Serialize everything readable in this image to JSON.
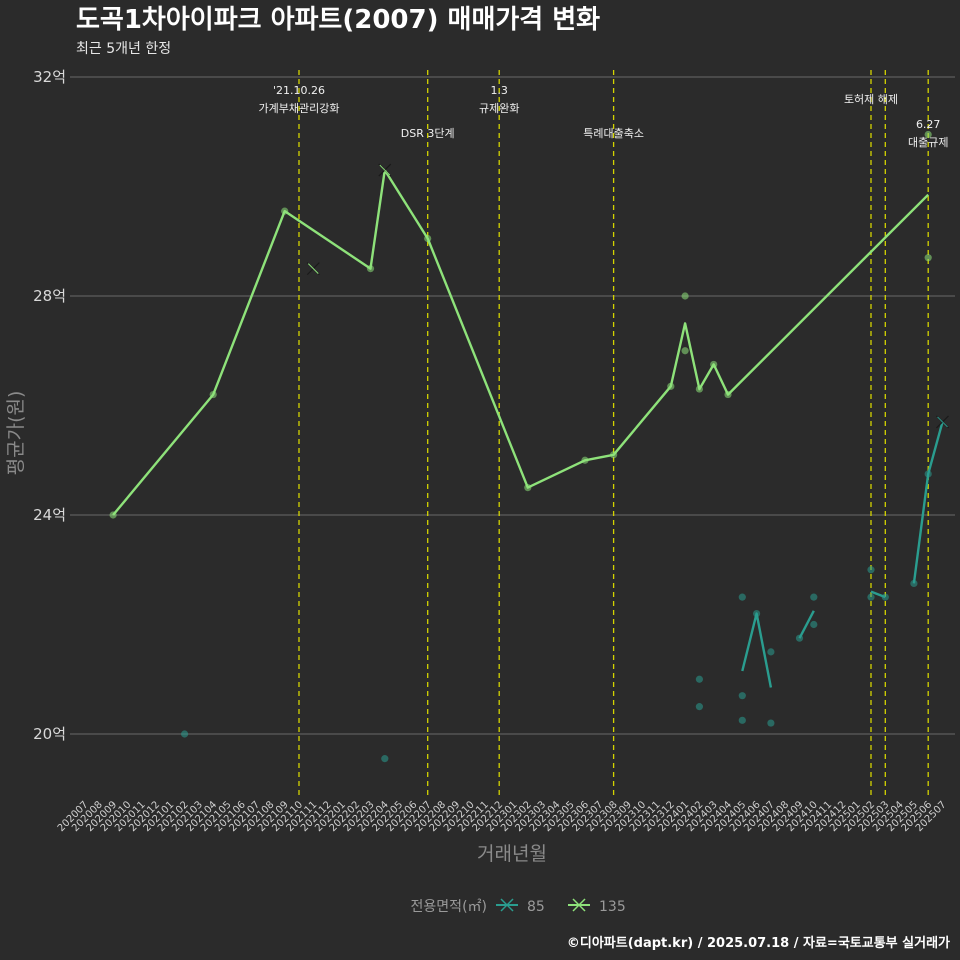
{
  "chart_data": {
    "type": "line",
    "title": "도곡1차아이파크 아파트(2007) 매매가격 변화",
    "subtitle": "최근 5개년 한정",
    "xlabel": "거래년월",
    "ylabel": "평균가(원)",
    "caption": "©디아파트(dapt.kr) / 2025.07.18 / 자료=국토교통부 실거래가",
    "legend_title": "전용면적(㎡)",
    "legend_position": "bottom",
    "grid": true,
    "ylim": [
      188000,
      320000
    ],
    "y_ticks": [
      {
        "value": 200000,
        "label": "20억"
      },
      {
        "value": 240000,
        "label": "24억"
      },
      {
        "value": 280000,
        "label": "28억"
      },
      {
        "value": 320000,
        "label": "32억"
      }
    ],
    "x_categories": [
      "202007",
      "202008",
      "202009",
      "202010",
      "202011",
      "202012",
      "202101",
      "202102",
      "202103",
      "202104",
      "202105",
      "202106",
      "202107",
      "202108",
      "202109",
      "202110",
      "202111",
      "202112",
      "202201",
      "202202",
      "202203",
      "202204",
      "202205",
      "202206",
      "202207",
      "202208",
      "202209",
      "202210",
      "202211",
      "202212",
      "202301",
      "202302",
      "202303",
      "202304",
      "202305",
      "202306",
      "202307",
      "202308",
      "202309",
      "202310",
      "202311",
      "202312",
      "202401",
      "202402",
      "202403",
      "202404",
      "202405",
      "202406",
      "202407",
      "202408",
      "202409",
      "202410",
      "202411",
      "202412",
      "202501",
      "202502",
      "202503",
      "202504",
      "202505",
      "202506",
      "202507"
    ],
    "annotations": [
      {
        "x": 15.0,
        "lines": [
          "'21.10.26",
          "가계부채관리강화"
        ],
        "row": 0
      },
      {
        "x": 24.0,
        "lines": [
          "DSR 3단계"
        ],
        "row": 2
      },
      {
        "x": 29.0,
        "lines": [
          "1.3",
          "규제완화"
        ],
        "row": 0
      },
      {
        "x": 37.0,
        "lines": [
          "특례대출축소"
        ],
        "row": 2
      },
      {
        "x": 55.0,
        "lines": [
          "토허제 해제"
        ],
        "row": 1
      },
      {
        "x": 56.0,
        "lines": [],
        "row": 1
      },
      {
        "x": 59.0,
        "lines": [
          "6.27",
          "대출규제"
        ],
        "row": 3
      }
    ],
    "series": [
      {
        "name": "85",
        "color": "#2a9d8f",
        "line": [
          {
            "x": 43.0,
            "y": 207500
          },
          {
            "x": 46.0,
            "y": 211500
          },
          {
            "x": 47.0,
            "y": 222000
          },
          {
            "x": 48.0,
            "y": 208500
          },
          {
            "x": 50.0,
            "y": 217500
          },
          {
            "x": 51.0,
            "y": 222500
          },
          {
            "x": 55.0,
            "y": 226000
          },
          {
            "x": 56.0,
            "y": 225000
          },
          {
            "x": 58.0,
            "y": 227500
          },
          {
            "x": 59.0,
            "y": 247500
          },
          {
            "x": 60.0,
            "y": 257000
          }
        ],
        "points": [
          {
            "x": 7.0,
            "y": 200000
          },
          {
            "x": 21.0,
            "y": 195500
          },
          {
            "x": 43.0,
            "y": 205000
          },
          {
            "x": 43.0,
            "y": 210000
          },
          {
            "x": 46.0,
            "y": 202500
          },
          {
            "x": 46.0,
            "y": 207000
          },
          {
            "x": 46.0,
            "y": 225000
          },
          {
            "x": 47.0,
            "y": 222000
          },
          {
            "x": 48.0,
            "y": 202000
          },
          {
            "x": 48.0,
            "y": 215000
          },
          {
            "x": 50.0,
            "y": 217500
          },
          {
            "x": 51.0,
            "y": 220000
          },
          {
            "x": 51.0,
            "y": 225000
          },
          {
            "x": 55.0,
            "y": 225000
          },
          {
            "x": 55.0,
            "y": 230000
          },
          {
            "x": 56.0,
            "y": 225000
          },
          {
            "x": 58.0,
            "y": 227500
          },
          {
            "x": 59.0,
            "y": 247500
          }
        ],
        "crosses": [
          {
            "x": 60.0,
            "y": 257000
          }
        ]
      },
      {
        "name": "135",
        "color": "#8ee27a",
        "line": [
          {
            "x": 2.0,
            "y": 240000
          },
          {
            "x": 9.0,
            "y": 262000
          },
          {
            "x": 14.0,
            "y": 295500
          },
          {
            "x": 20.0,
            "y": 285000
          },
          {
            "x": 21.0,
            "y": 303000
          },
          {
            "x": 24.0,
            "y": 290500
          },
          {
            "x": 31.0,
            "y": 245000
          },
          {
            "x": 35.0,
            "y": 250000
          },
          {
            "x": 37.0,
            "y": 251000
          },
          {
            "x": 41.0,
            "y": 263500
          },
          {
            "x": 42.0,
            "y": 275000
          },
          {
            "x": 43.0,
            "y": 263000
          },
          {
            "x": 44.0,
            "y": 267500
          },
          {
            "x": 45.0,
            "y": 262000
          },
          {
            "x": 59.0,
            "y": 298500
          }
        ],
        "points": [
          {
            "x": 2.0,
            "y": 240000
          },
          {
            "x": 9.0,
            "y": 262000
          },
          {
            "x": 14.0,
            "y": 295500
          },
          {
            "x": 20.0,
            "y": 285000
          },
          {
            "x": 24.0,
            "y": 290500
          },
          {
            "x": 31.0,
            "y": 245000
          },
          {
            "x": 35.0,
            "y": 250000
          },
          {
            "x": 37.0,
            "y": 251000
          },
          {
            "x": 41.0,
            "y": 263500
          },
          {
            "x": 42.0,
            "y": 270000
          },
          {
            "x": 42.0,
            "y": 280000
          },
          {
            "x": 43.0,
            "y": 263000
          },
          {
            "x": 44.0,
            "y": 267500
          },
          {
            "x": 45.0,
            "y": 262000
          },
          {
            "x": 59.0,
            "y": 287000
          },
          {
            "x": 59.0,
            "y": 309500
          }
        ],
        "crosses": [
          {
            "x": 16.0,
            "y": 285000
          },
          {
            "x": 21.0,
            "y": 303000
          }
        ]
      }
    ]
  }
}
